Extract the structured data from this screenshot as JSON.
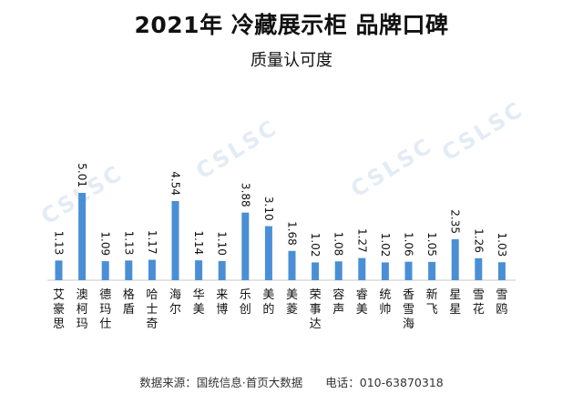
{
  "title": "2021年 冷藏展示柜 品牌口碑",
  "subtitle": "质量认可度",
  "watermark": "CSLSC",
  "footer": "数据来源：国统信息·首页大数据　　电话：010-63870318",
  "colors": {
    "bar": "#4a8fd6",
    "axis": "#c8c8c8"
  },
  "chart_data": {
    "type": "bar",
    "title": "2021年 冷藏展示柜 品牌口碑",
    "subtitle": "质量认可度",
    "categories": [
      "艾豪思",
      "澳柯玛",
      "德玛仕",
      "格盾",
      "哈士奇",
      "海尔",
      "华美",
      "来博",
      "乐创",
      "美的",
      "美菱",
      "荣事达",
      "容声",
      "睿美",
      "统帅",
      "香雪海",
      "新飞",
      "星星",
      "雪花",
      "雪鸥"
    ],
    "values": [
      1.13,
      5.01,
      1.09,
      1.13,
      1.17,
      4.54,
      1.14,
      1.1,
      3.88,
      3.1,
      1.68,
      1.02,
      1.08,
      1.27,
      1.02,
      1.06,
      1.05,
      2.35,
      1.26,
      1.03
    ],
    "labels": [
      "1.13",
      "5.01",
      "1.09",
      "1.13",
      "1.17",
      "4.54",
      "1.14",
      "1.10",
      "3.88",
      "3.10",
      "1.68",
      "1.02",
      "1.08",
      "1.27",
      "1.02",
      "1.06",
      "1.05",
      "2.35",
      "1.26",
      "1.03"
    ],
    "grid": false,
    "legend": "none"
  }
}
